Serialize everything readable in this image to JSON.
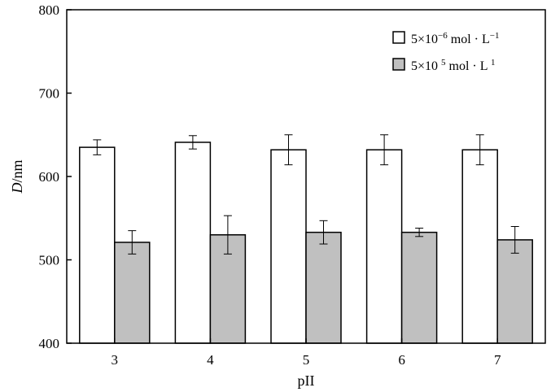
{
  "chart_data": {
    "type": "bar",
    "categories": [
      "3",
      "4",
      "5",
      "6",
      "7"
    ],
    "series": [
      {
        "name": "5×10⁻⁶ mol · L⁻¹",
        "values": [
          635,
          641,
          632,
          632,
          632
        ],
        "errors": [
          9,
          8,
          18,
          18,
          18
        ],
        "color": "#ffffff"
      },
      {
        "name": "5×10 ⁵ mol · L ¹",
        "values": [
          521,
          530,
          533,
          533,
          524
        ],
        "errors": [
          14,
          23,
          14,
          5,
          16
        ],
        "color": "#c0c0c0"
      }
    ],
    "ylim": [
      400,
      800
    ],
    "yticks": [
      "400",
      "500",
      "600",
      "700",
      "800"
    ],
    "ylabel": "D/nm",
    "xlabel": "pII",
    "legend_position": "top-right",
    "grid": false
  }
}
